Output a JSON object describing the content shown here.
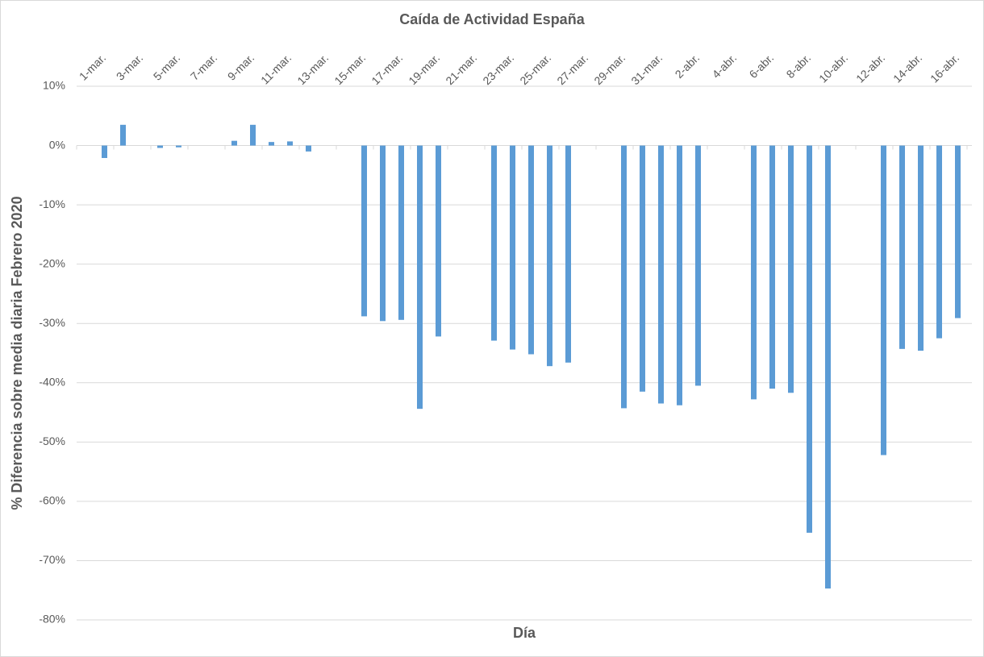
{
  "chart_data": {
    "type": "bar",
    "title": "Caída de Actividad España",
    "x_label": "Día",
    "y_label": "% Diferencia sobre media diaria Febrero 2020",
    "color": "#5b9bd5",
    "grid": true,
    "categories": [
      null,
      "1-mar.",
      null,
      "3-mar.",
      null,
      "5-mar.",
      null,
      "7-mar.",
      null,
      "9-mar.",
      null,
      "11-mar.",
      null,
      "13-mar.",
      null,
      "15-mar.",
      null,
      "17-mar.",
      null,
      "19-mar.",
      null,
      "21-mar.",
      null,
      "23-mar.",
      null,
      "25-mar.",
      null,
      "27-mar.",
      null,
      "29-mar.",
      null,
      "31-mar.",
      null,
      "2-abr.",
      null,
      "4-abr.",
      null,
      "6-abr.",
      null,
      "8-abr.",
      null,
      "10-abr.",
      null,
      "12-abr.",
      null,
      "14-abr.",
      null,
      "16-abr."
    ],
    "values": [
      null,
      -2.1,
      3.5,
      null,
      -0.4,
      -0.3,
      null,
      null,
      0.8,
      3.5,
      0.6,
      0.7,
      -1.0,
      null,
      null,
      -28.8,
      -29.6,
      -29.4,
      -44.4,
      -32.2,
      null,
      null,
      -32.9,
      -34.4,
      -35.2,
      -37.2,
      -36.6,
      null,
      null,
      -44.3,
      -41.5,
      -43.5,
      -43.8,
      -40.5,
      null,
      null,
      -42.8,
      -41.0,
      -41.7,
      -65.3,
      -74.7,
      null,
      null,
      -52.2,
      -34.3,
      -34.6,
      -32.5,
      -29.1
    ],
    "ylim": [
      -80,
      10
    ],
    "yticks": [
      {
        "value": 10,
        "label": "10%"
      },
      {
        "value": 0,
        "label": "0%"
      },
      {
        "value": -10,
        "label": "-10%"
      },
      {
        "value": -20,
        "label": "-20%"
      },
      {
        "value": -30,
        "label": "-30%"
      },
      {
        "value": -40,
        "label": "-40%"
      },
      {
        "value": -50,
        "label": "-50%"
      },
      {
        "value": -60,
        "label": "-60%"
      },
      {
        "value": -70,
        "label": "-70%"
      },
      {
        "value": -80,
        "label": "-80%"
      }
    ]
  }
}
